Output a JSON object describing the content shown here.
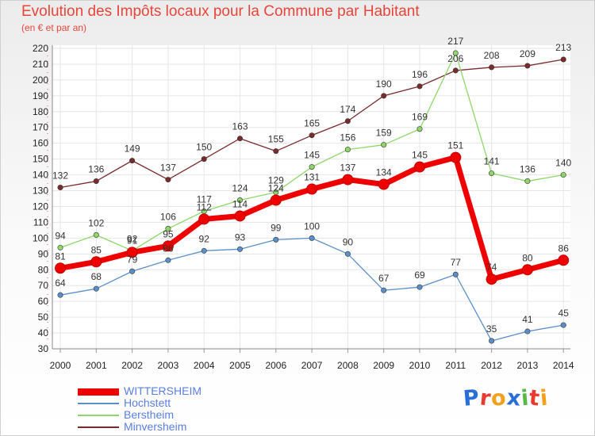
{
  "header": {
    "title": "Evolution des Impôts locaux pour la Commune par Habitant",
    "subtitle": "(en € et par an)"
  },
  "logo": {
    "text": "Proxiti",
    "letters": [
      "P",
      "r",
      "o",
      "x",
      "i",
      "t",
      "i"
    ],
    "colors": [
      "#2a6fd8",
      "#e83a2f",
      "#f2a11c",
      "#2a6fd8",
      "#58b847",
      "#e83a2f",
      "#f2a11c"
    ]
  },
  "chart_data": {
    "type": "line",
    "x": [
      "2000",
      "2001",
      "2002",
      "2003",
      "2004",
      "2005",
      "2006",
      "2007",
      "2008",
      "2009",
      "2010",
      "2011",
      "2012",
      "2013",
      "2014"
    ],
    "ylim": [
      30,
      220
    ],
    "yticks": [
      30,
      40,
      50,
      60,
      70,
      80,
      90,
      100,
      110,
      120,
      130,
      140,
      150,
      160,
      170,
      180,
      190,
      200,
      210,
      220
    ],
    "grid": true,
    "legend_position": "bottom-left",
    "series": [
      {
        "name": "Minversheim",
        "color": "#7a2b2b",
        "width": 1.3,
        "values": [
          132,
          136,
          149,
          137,
          150,
          163,
          155,
          165,
          174,
          190,
          196,
          206,
          208,
          209,
          213
        ]
      },
      {
        "name": "Berstheim",
        "color": "#8fd66b",
        "width": 1.3,
        "values": [
          94,
          102,
          92,
          106,
          117,
          124,
          129,
          145,
          156,
          159,
          169,
          217,
          141,
          136,
          140
        ]
      },
      {
        "name": "Hochstett",
        "color": "#5b8fc9",
        "width": 1.3,
        "values": [
          64,
          68,
          79,
          86,
          92,
          93,
          99,
          100,
          90,
          67,
          69,
          77,
          35,
          41,
          45
        ]
      },
      {
        "name": "WITTERSHEIM",
        "color": "#ee0000",
        "width": 7,
        "values": [
          81,
          85,
          91,
          95,
          112,
          114,
          124,
          131,
          137,
          134,
          145,
          151,
          74,
          80,
          86
        ]
      }
    ],
    "legend_order": [
      "WITTERSHEIM",
      "Hochstett",
      "Berstheim",
      "Minversheim"
    ]
  }
}
